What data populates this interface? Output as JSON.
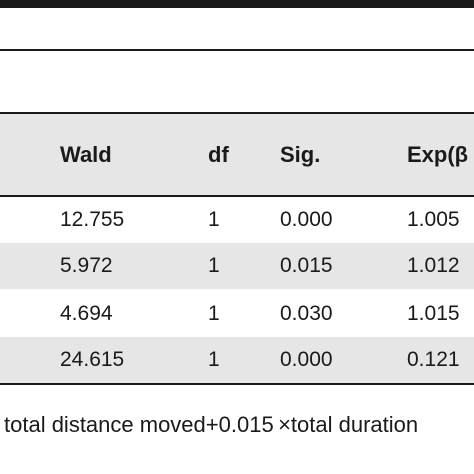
{
  "table": {
    "headers": {
      "wald": "Wald",
      "df": "df",
      "sig": "Sig.",
      "exp": "Exp(β"
    },
    "rows": [
      {
        "wald": "12.755",
        "df": "1",
        "sig": "0.000",
        "exp": "1.005"
      },
      {
        "wald": "5.972",
        "df": "1",
        "sig": "0.015",
        "exp": "1.012"
      },
      {
        "wald": "4.694",
        "df": "1",
        "sig": "0.030",
        "exp": "1.015"
      },
      {
        "wald": "24.615",
        "df": "1",
        "sig": "0.000",
        "exp": "0.121"
      }
    ]
  },
  "footnote": "total distance moved+0.015 ×total duration"
}
